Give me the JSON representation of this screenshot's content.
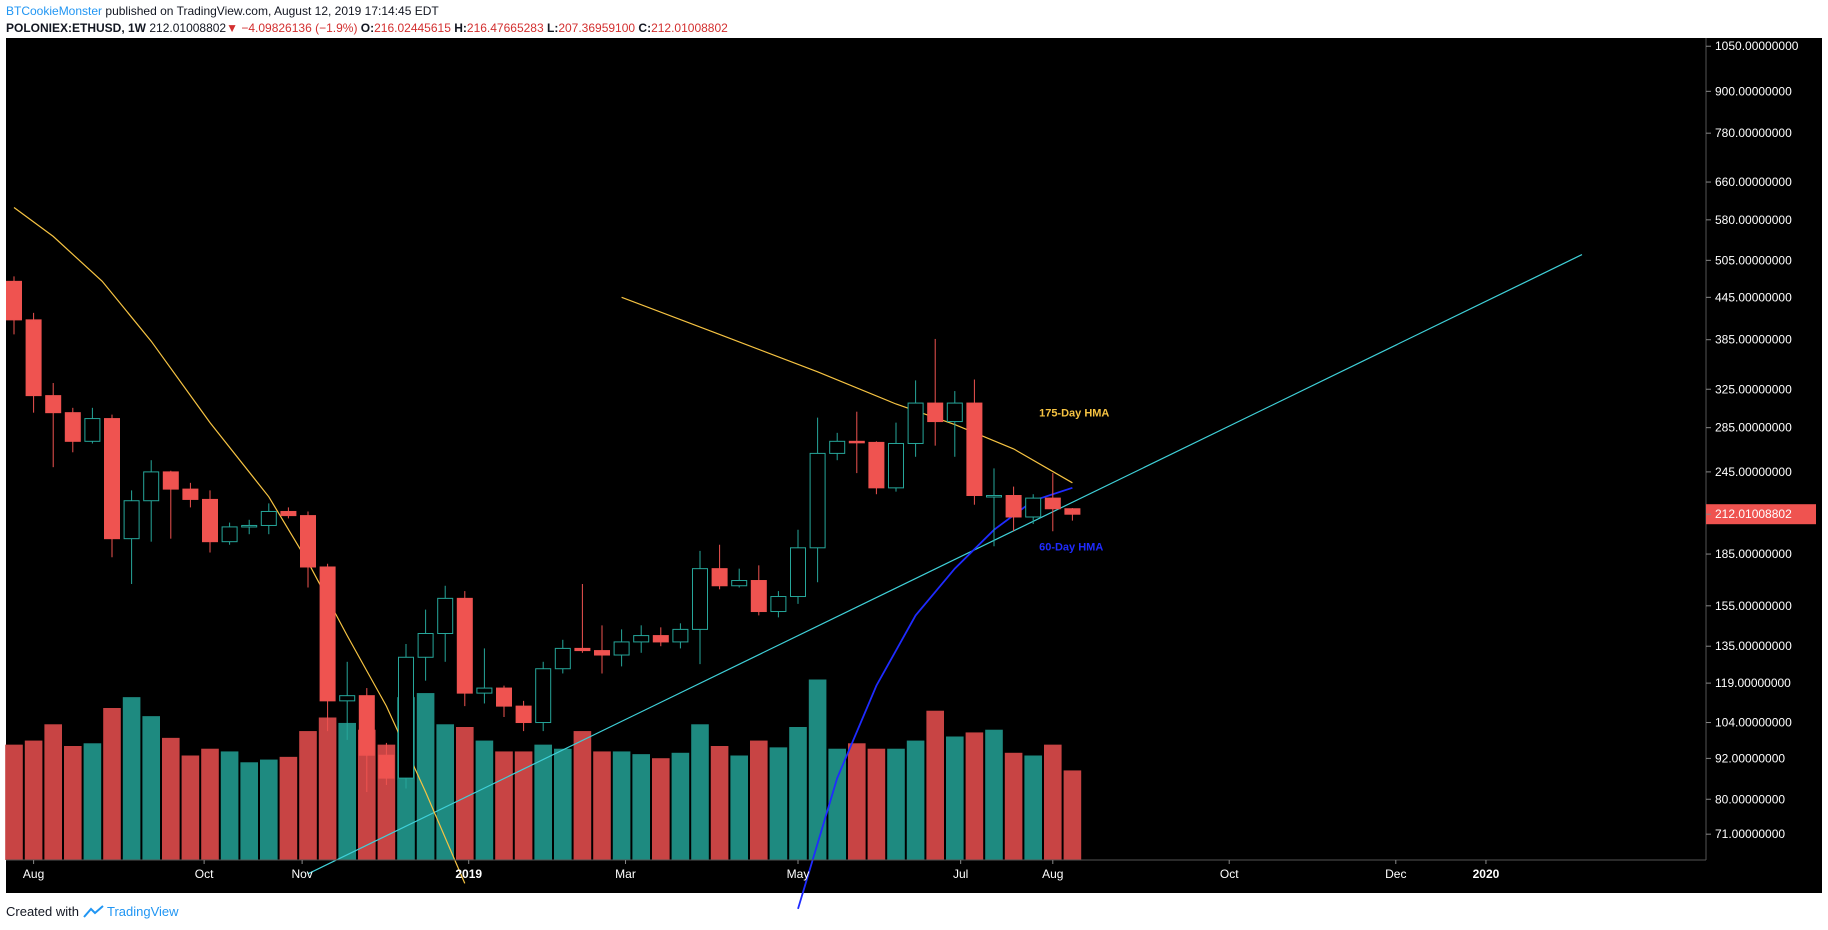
{
  "header": {
    "author": "BTCookieMonster",
    "published_text": "published on TradingView.com, August 12, 2019 17:14:45 EDT",
    "symbol": "POLONIEX:ETHUSD, 1W",
    "last": "212.01008802",
    "arrow": "▼",
    "change": "−4.09826136 (−1.9%)",
    "o_label": "O:",
    "o_value": "216.02445615",
    "h_label": "H:",
    "h_value": "216.47665283",
    "l_label": "L:",
    "l_value": "207.36959100",
    "c_label": "C:",
    "c_value": "212.01008802"
  },
  "footer": {
    "created_with": "Created with",
    "brand": "TradingView"
  },
  "colors": {
    "background": "#000000",
    "up": "#26a69a",
    "down": "#ef5350",
    "vol_up": "#1e8a80",
    "vol_down": "#c84444",
    "hma175": "#f6c342",
    "hma60": "#1f2bff",
    "trendline": "#3fd0d8",
    "axis_text": "#ffffff"
  },
  "chart_data": {
    "type": "candlestick",
    "symbol": "POLONIEX:ETHUSD",
    "interval": "1W",
    "y_scale": "log",
    "ylim": [
      65,
      1080
    ],
    "y_ticks": [
      "1050.00000000",
      "900.00000000",
      "780.00000000",
      "660.00000000",
      "580.00000000",
      "505.00000000",
      "445.00000000",
      "385.00000000",
      "325.00000000",
      "285.00000000",
      "245.00000000",
      "212.01008802",
      "185.00000000",
      "155.00000000",
      "135.00000000",
      "119.00000000",
      "104.00000000",
      "92.00000000",
      "80.00000000",
      "71.00000000"
    ],
    "y_tick_values": [
      1050,
      900,
      780,
      660,
      580,
      505,
      445,
      385,
      325,
      285,
      245,
      212.01,
      185,
      155,
      135,
      119,
      104,
      92,
      80,
      71
    ],
    "last_price_label": "212.01008802",
    "x_ticks": [
      {
        "label": "Aug",
        "week": 1
      },
      {
        "label": "Oct",
        "week": 9.7
      },
      {
        "label": "Nov",
        "week": 14.7
      },
      {
        "label": "2019",
        "week": 23.2
      },
      {
        "label": "Mar",
        "week": 31.2
      },
      {
        "label": "May",
        "week": 40
      },
      {
        "label": "Jul",
        "week": 48.3
      },
      {
        "label": "Aug",
        "week": 53
      },
      {
        "label": "Oct",
        "week": 62
      },
      {
        "label": "Dec",
        "week": 70.5
      },
      {
        "label": "2020",
        "week": 75.1
      }
    ],
    "candles": [
      {
        "o": 470,
        "h": 478,
        "l": 392,
        "c": 412,
        "v": 85
      },
      {
        "o": 412,
        "h": 422,
        "l": 300,
        "c": 318,
        "v": 88
      },
      {
        "o": 318,
        "h": 332,
        "l": 249,
        "c": 300,
        "v": 100
      },
      {
        "o": 300,
        "h": 305,
        "l": 262,
        "c": 272,
        "v": 84
      },
      {
        "o": 272,
        "h": 305,
        "l": 270,
        "c": 294,
        "v": 86
      },
      {
        "o": 294,
        "h": 298,
        "l": 183,
        "c": 195,
        "v": 112
      },
      {
        "o": 195,
        "h": 230,
        "l": 167,
        "c": 222,
        "v": 120
      },
      {
        "o": 222,
        "h": 255,
        "l": 193,
        "c": 245,
        "v": 106
      },
      {
        "o": 245,
        "h": 246,
        "l": 195,
        "c": 231,
        "v": 90
      },
      {
        "o": 231,
        "h": 236,
        "l": 217,
        "c": 223,
        "v": 77
      },
      {
        "o": 223,
        "h": 230,
        "l": 186,
        "c": 193,
        "v": 82
      },
      {
        "o": 193,
        "h": 206,
        "l": 191,
        "c": 203,
        "v": 80
      },
      {
        "o": 203,
        "h": 208,
        "l": 198,
        "c": 204,
        "v": 72
      },
      {
        "o": 204,
        "h": 220,
        "l": 198,
        "c": 214,
        "v": 74
      },
      {
        "o": 214,
        "h": 217,
        "l": 209,
        "c": 211,
        "v": 76
      },
      {
        "o": 211,
        "h": 214,
        "l": 165,
        "c": 177,
        "v": 95
      },
      {
        "o": 177,
        "h": 179,
        "l": 101,
        "c": 112,
        "v": 105
      },
      {
        "o": 112,
        "h": 128,
        "l": 98,
        "c": 114,
        "v": 101
      },
      {
        "o": 114,
        "h": 117,
        "l": 82,
        "c": 93,
        "v": 96
      },
      {
        "o": 93,
        "h": 97,
        "l": 84,
        "c": 86,
        "v": 85
      },
      {
        "o": 86,
        "h": 136,
        "l": 83,
        "c": 130,
        "v": 120
      },
      {
        "o": 130,
        "h": 153,
        "l": 120,
        "c": 141,
        "v": 123
      },
      {
        "o": 141,
        "h": 166,
        "l": 128,
        "c": 159,
        "v": 100
      },
      {
        "o": 159,
        "h": 163,
        "l": 110,
        "c": 115,
        "v": 98
      },
      {
        "o": 115,
        "h": 134,
        "l": 111,
        "c": 117,
        "v": 88
      },
      {
        "o": 117,
        "h": 118,
        "l": 106,
        "c": 110,
        "v": 80
      },
      {
        "o": 110,
        "h": 112,
        "l": 101,
        "c": 104,
        "v": 80
      },
      {
        "o": 104,
        "h": 128,
        "l": 101,
        "c": 125,
        "v": 85
      },
      {
        "o": 125,
        "h": 138,
        "l": 123,
        "c": 134,
        "v": 82
      },
      {
        "o": 134,
        "h": 167,
        "l": 132,
        "c": 133,
        "v": 95
      },
      {
        "o": 133,
        "h": 145,
        "l": 123,
        "c": 131,
        "v": 80
      },
      {
        "o": 131,
        "h": 143,
        "l": 126,
        "c": 137,
        "v": 80
      },
      {
        "o": 137,
        "h": 145,
        "l": 132,
        "c": 140,
        "v": 78
      },
      {
        "o": 140,
        "h": 144,
        "l": 135,
        "c": 137,
        "v": 75
      },
      {
        "o": 137,
        "h": 146,
        "l": 134,
        "c": 143,
        "v": 79
      },
      {
        "o": 143,
        "h": 187,
        "l": 127,
        "c": 176,
        "v": 100
      },
      {
        "o": 176,
        "h": 191,
        "l": 164,
        "c": 166,
        "v": 84
      },
      {
        "o": 166,
        "h": 176,
        "l": 165,
        "c": 169,
        "v": 77
      },
      {
        "o": 169,
        "h": 178,
        "l": 150,
        "c": 152,
        "v": 88
      },
      {
        "o": 152,
        "h": 163,
        "l": 149,
        "c": 160,
        "v": 83
      },
      {
        "o": 160,
        "h": 201,
        "l": 156,
        "c": 189,
        "v": 98
      },
      {
        "o": 189,
        "h": 295,
        "l": 168,
        "c": 261,
        "v": 133
      },
      {
        "o": 261,
        "h": 280,
        "l": 255,
        "c": 272,
        "v": 82
      },
      {
        "o": 272,
        "h": 301,
        "l": 244,
        "c": 271,
        "v": 86
      },
      {
        "o": 271,
        "h": 272,
        "l": 227,
        "c": 232,
        "v": 82
      },
      {
        "o": 232,
        "h": 290,
        "l": 229,
        "c": 270,
        "v": 82
      },
      {
        "o": 270,
        "h": 335,
        "l": 258,
        "c": 310,
        "v": 88
      },
      {
        "o": 310,
        "h": 386,
        "l": 268,
        "c": 291,
        "v": 110
      },
      {
        "o": 291,
        "h": 323,
        "l": 258,
        "c": 310,
        "v": 91
      },
      {
        "o": 310,
        "h": 336,
        "l": 219,
        "c": 226,
        "v": 94
      },
      {
        "o": 226,
        "h": 248,
        "l": 190,
        "c": 226,
        "v": 96
      },
      {
        "o": 226,
        "h": 233,
        "l": 200,
        "c": 210,
        "v": 79
      },
      {
        "o": 210,
        "h": 227,
        "l": 205,
        "c": 224,
        "v": 77
      },
      {
        "o": 224,
        "h": 244,
        "l": 200,
        "c": 216,
        "v": 85
      },
      {
        "o": 216,
        "h": 216.5,
        "l": 207.4,
        "c": 212.01,
        "v": 66
      }
    ],
    "hma_175": {
      "segment1": [
        [
          0,
          605
        ],
        [
          2,
          548
        ],
        [
          4.5,
          470
        ],
        [
          7,
          383
        ],
        [
          10,
          290
        ],
        [
          13,
          225
        ],
        [
          15,
          180
        ],
        [
          17,
          140
        ],
        [
          19,
          110
        ],
        [
          21,
          82
        ],
        [
          23,
          60
        ]
      ],
      "segment2": [
        [
          31,
          445
        ],
        [
          36,
          392
        ],
        [
          41,
          345
        ],
        [
          45,
          309
        ],
        [
          48,
          288
        ],
        [
          51,
          265
        ],
        [
          54,
          236
        ]
      ]
    },
    "hma_60": [
      [
        40,
        55
      ],
      [
        42,
        86
      ],
      [
        44,
        118
      ],
      [
        46,
        150
      ],
      [
        48,
        176
      ],
      [
        50,
        201
      ],
      [
        52,
        222
      ],
      [
        54,
        232
      ]
    ],
    "trendline": [
      [
        15,
        62
      ],
      [
        80,
        515
      ]
    ],
    "annotations": [
      {
        "text": "175-Day HMA",
        "week": 52.3,
        "price": 300,
        "color": "#f6c342"
      },
      {
        "text": "60-Day HMA",
        "week": 52.3,
        "price": 190,
        "color": "#1f2bff"
      }
    ]
  }
}
